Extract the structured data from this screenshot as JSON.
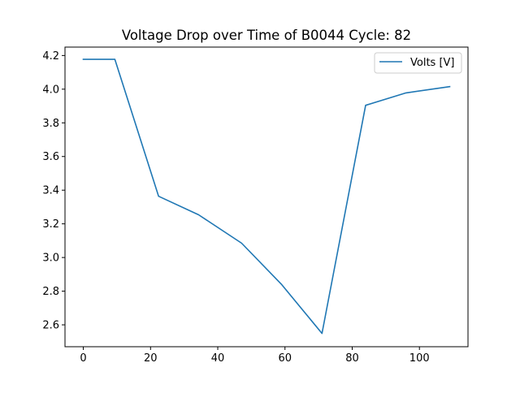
{
  "chart_data": {
    "type": "line",
    "title": "Voltage Drop over Time of B0044 Cycle: 82",
    "xlabel": "",
    "ylabel": "",
    "xlim": [
      -5.45,
      114.45
    ],
    "ylim": [
      2.47,
      4.25
    ],
    "x_ticks": [
      0,
      20,
      40,
      60,
      80,
      100
    ],
    "y_ticks": [
      2.6,
      2.8,
      3.0,
      3.2,
      3.4,
      3.6,
      3.8,
      4.0,
      4.2
    ],
    "x_tick_labels": [
      "0",
      "20",
      "40",
      "60",
      "80",
      "100"
    ],
    "y_tick_labels": [
      "2.6",
      "2.8",
      "3.0",
      "3.2",
      "3.4",
      "3.6",
      "3.8",
      "4.0",
      "4.2"
    ],
    "grid": false,
    "legend_position": "upper right",
    "series": [
      {
        "name": "Volts [V]",
        "color": "#1f77b4",
        "x": [
          0,
          9.4,
          22.4,
          34.3,
          47.1,
          58.9,
          71.0,
          84.0,
          96.0,
          109.0
        ],
        "y": [
          4.177,
          4.177,
          3.364,
          3.254,
          3.085,
          2.842,
          2.549,
          3.904,
          3.978,
          4.015
        ]
      }
    ]
  }
}
